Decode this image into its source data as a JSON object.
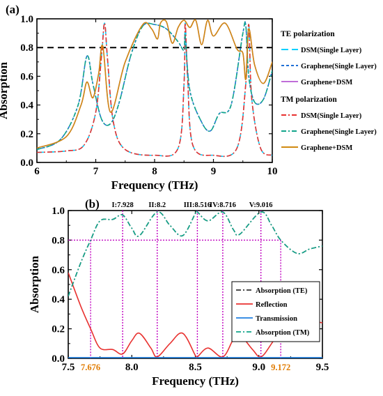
{
  "chart_data": [
    {
      "type": "line",
      "panel_label": "(a)",
      "xlabel": "Frequency (THz)",
      "ylabel": "Absorption",
      "xlim": [
        6,
        10
      ],
      "ylim": [
        0,
        1.0
      ],
      "x_ticks": [
        "6",
        "7",
        "8",
        "9",
        "10"
      ],
      "y_ticks": [
        "0.0",
        "0.2",
        "0.4",
        "0.6",
        "0.8",
        "1.0"
      ],
      "reference_line": {
        "y": 0.8,
        "style": "dashed",
        "color": "#000000"
      },
      "legend_groups": [
        {
          "title": "TE polarization",
          "entries": [
            {
              "label": "DSM(Single Layer)",
              "color": "#00d0ff",
              "dash": "10,5"
            },
            {
              "label": "Graphene(Single Layer)",
              "color": "#1f6fd6",
              "dash": "4,3"
            },
            {
              "label": "Graphene+DSM",
              "color": "#c06dd8",
              "dash": ""
            }
          ]
        },
        {
          "title": "TM polarization",
          "entries": [
            {
              "label": "DSM(Single Layer)",
              "color": "#e8312f",
              "dash": "7,3,2,3"
            },
            {
              "label": "Graphene(Single Layer)",
              "color": "#11a58b",
              "dash": "7,3,2,3"
            },
            {
              "label": "Graphene+DSM",
              "color": "#d08a10",
              "dash": ""
            }
          ]
        }
      ],
      "series": [
        {
          "group": "TE polarization",
          "name": "DSM(Single Layer)",
          "color": "#00d0ff",
          "dash": "10,5",
          "x": [
            6.0,
            6.5,
            6.8,
            7.0,
            7.1,
            7.15,
            7.2,
            7.3,
            7.5,
            8.0,
            8.4,
            8.5,
            8.52,
            8.56,
            8.65,
            9.0,
            9.4,
            9.55,
            9.6,
            9.65,
            9.8,
            10.0
          ],
          "y": [
            0.07,
            0.08,
            0.12,
            0.35,
            0.75,
            0.97,
            0.72,
            0.28,
            0.09,
            0.05,
            0.1,
            0.55,
            0.97,
            0.6,
            0.12,
            0.05,
            0.1,
            0.55,
            0.96,
            0.45,
            0.1,
            0.05
          ]
        },
        {
          "group": "TE polarization",
          "name": "Graphene(Single Layer)",
          "color": "#1f6fd6",
          "dash": "4,3",
          "x": [
            6.0,
            6.4,
            6.7,
            6.85,
            6.95,
            7.1,
            7.25,
            7.4,
            7.6,
            7.8,
            8.0,
            8.2,
            8.4,
            8.5,
            8.52,
            8.6,
            8.8,
            8.95,
            9.1,
            9.3,
            9.5,
            9.55,
            9.6,
            9.7,
            9.85,
            10.0
          ],
          "y": [
            0.09,
            0.16,
            0.4,
            0.74,
            0.55,
            0.3,
            0.27,
            0.42,
            0.75,
            0.95,
            0.96,
            0.93,
            0.84,
            0.78,
            0.88,
            0.5,
            0.28,
            0.22,
            0.34,
            0.4,
            0.9,
            0.95,
            0.6,
            0.42,
            0.44,
            0.64
          ]
        },
        {
          "group": "TE polarization",
          "name": "Graphene+DSM",
          "color": "#c06dd8",
          "dash": "",
          "x": [
            6.0,
            6.5,
            6.75,
            6.85,
            6.95,
            7.05,
            7.12,
            7.25,
            7.5,
            7.8,
            7.95,
            8.05,
            8.1,
            8.2,
            8.3,
            8.4,
            8.5,
            8.6,
            8.7,
            8.8,
            8.9,
            9.0,
            9.2,
            9.4,
            9.5,
            9.55,
            9.6,
            9.7,
            9.85,
            10.0
          ],
          "y": [
            0.1,
            0.18,
            0.4,
            0.56,
            0.45,
            0.62,
            0.81,
            0.35,
            0.7,
            0.96,
            0.93,
            0.86,
            0.97,
            0.98,
            0.83,
            0.94,
            0.99,
            0.94,
            0.99,
            0.82,
            0.99,
            0.88,
            0.97,
            0.79,
            0.76,
            0.58,
            0.93,
            0.68,
            0.55,
            0.7
          ]
        },
        {
          "group": "TM polarization",
          "name": "DSM(Single Layer)",
          "color": "#e8312f",
          "dash": "7,3,2,3",
          "x": [
            6.0,
            6.5,
            6.8,
            7.0,
            7.1,
            7.15,
            7.2,
            7.3,
            7.5,
            8.0,
            8.4,
            8.5,
            8.52,
            8.56,
            8.65,
            9.0,
            9.4,
            9.55,
            9.6,
            9.65,
            9.8,
            10.0
          ],
          "y": [
            0.07,
            0.08,
            0.12,
            0.35,
            0.75,
            0.97,
            0.72,
            0.28,
            0.09,
            0.05,
            0.1,
            0.55,
            0.97,
            0.6,
            0.12,
            0.05,
            0.1,
            0.55,
            0.96,
            0.45,
            0.1,
            0.05
          ]
        },
        {
          "group": "TM polarization",
          "name": "Graphene(Single Layer)",
          "color": "#11a58b",
          "dash": "7,3,2,3",
          "x": [
            6.0,
            6.4,
            6.7,
            6.85,
            6.95,
            7.1,
            7.25,
            7.4,
            7.6,
            7.8,
            8.0,
            8.2,
            8.4,
            8.5,
            8.52,
            8.6,
            8.8,
            8.95,
            9.1,
            9.3,
            9.5,
            9.55,
            9.6,
            9.7,
            9.85,
            10.0
          ],
          "y": [
            0.09,
            0.16,
            0.4,
            0.74,
            0.55,
            0.3,
            0.27,
            0.42,
            0.75,
            0.95,
            0.96,
            0.93,
            0.84,
            0.78,
            0.88,
            0.5,
            0.28,
            0.22,
            0.34,
            0.4,
            0.9,
            0.95,
            0.6,
            0.42,
            0.44,
            0.64
          ]
        },
        {
          "group": "TM polarization",
          "name": "Graphene+DSM",
          "color": "#d08a10",
          "dash": "",
          "x": [
            6.0,
            6.5,
            6.75,
            6.85,
            6.95,
            7.05,
            7.12,
            7.25,
            7.5,
            7.8,
            7.95,
            8.05,
            8.1,
            8.2,
            8.3,
            8.4,
            8.5,
            8.6,
            8.7,
            8.8,
            8.9,
            9.0,
            9.2,
            9.4,
            9.5,
            9.55,
            9.6,
            9.7,
            9.85,
            10.0
          ],
          "y": [
            0.1,
            0.18,
            0.4,
            0.56,
            0.45,
            0.62,
            0.81,
            0.35,
            0.7,
            0.96,
            0.93,
            0.86,
            0.97,
            0.98,
            0.83,
            0.94,
            0.99,
            0.94,
            0.99,
            0.82,
            0.99,
            0.88,
            0.97,
            0.79,
            0.76,
            0.58,
            0.93,
            0.68,
            0.55,
            0.7
          ]
        }
      ]
    },
    {
      "type": "line",
      "panel_label": "(b)",
      "xlabel": "Frequency (THz)",
      "ylabel": "Absorption",
      "xlim": [
        7.5,
        9.5
      ],
      "ylim": [
        0,
        1.0
      ],
      "x_ticks": [
        "7.5",
        "8.0",
        "8.5",
        "9.0",
        "9.5"
      ],
      "y_ticks": [
        "0.0",
        "0.2",
        "0.4",
        "0.6",
        "0.8",
        "1.0"
      ],
      "reference_line": {
        "y": 0.8,
        "style": "dotted",
        "color": "#c000c0"
      },
      "peak_markers": [
        {
          "x": 7.928,
          "label": "I:7.928"
        },
        {
          "x": 8.2,
          "label": "II:8.2"
        },
        {
          "x": 8.516,
          "label": "III:8.516"
        },
        {
          "x": 8.716,
          "label": "IV:8.716"
        },
        {
          "x": 9.016,
          "label": "V:9.016"
        }
      ],
      "bandwidth_markers": [
        {
          "x": 7.676,
          "label": "7.676"
        },
        {
          "x": 9.172,
          "label": "9.172"
        }
      ],
      "legend": [
        {
          "label": "Absorption (TE)",
          "color": "#333333",
          "dash": "7,3,2,3"
        },
        {
          "label": "Reflection",
          "color": "#e8312f",
          "dash": ""
        },
        {
          "label": "Transmission",
          "color": "#1f7fe0",
          "dash": ""
        },
        {
          "label": "Absorption (TM)",
          "color": "#11a58b",
          "dash": "7,3,2,3"
        }
      ],
      "series": [
        {
          "name": "Absorption (TE)",
          "color": "#333333",
          "dash": "7,3,2,3",
          "x": [
            7.5,
            7.6,
            7.676,
            7.75,
            7.85,
            7.928,
            8.0,
            8.06,
            8.2,
            8.3,
            8.4,
            8.5,
            8.516,
            8.6,
            8.716,
            8.8,
            8.85,
            9.016,
            9.1,
            9.172,
            9.3,
            9.4,
            9.5
          ],
          "y": [
            0.42,
            0.65,
            0.8,
            0.93,
            0.94,
            0.97,
            0.88,
            0.83,
            0.99,
            0.9,
            0.83,
            0.98,
            0.99,
            0.93,
            0.99,
            0.87,
            0.84,
            0.99,
            0.9,
            0.8,
            0.71,
            0.74,
            0.76
          ]
        },
        {
          "name": "Reflection",
          "color": "#e8312f",
          "dash": "",
          "x": [
            7.5,
            7.6,
            7.676,
            7.75,
            7.85,
            7.928,
            8.0,
            8.06,
            8.15,
            8.2,
            8.3,
            8.4,
            8.5,
            8.516,
            8.6,
            8.716,
            8.8,
            8.85,
            8.95,
            9.016,
            9.1,
            9.172,
            9.3,
            9.4,
            9.5
          ],
          "y": [
            0.58,
            0.35,
            0.2,
            0.07,
            0.06,
            0.03,
            0.12,
            0.17,
            0.07,
            0.01,
            0.1,
            0.17,
            0.02,
            0.01,
            0.07,
            0.01,
            0.13,
            0.16,
            0.06,
            0.01,
            0.1,
            0.2,
            0.29,
            0.26,
            0.24
          ]
        },
        {
          "name": "Transmission",
          "color": "#1f7fe0",
          "dash": "",
          "x": [
            7.5,
            9.5
          ],
          "y": [
            0.005,
            0.005
          ]
        },
        {
          "name": "Absorption (TM)",
          "color": "#11a58b",
          "dash": "7,3,2,3",
          "x": [
            7.5,
            7.6,
            7.676,
            7.75,
            7.85,
            7.928,
            8.0,
            8.06,
            8.2,
            8.3,
            8.4,
            8.5,
            8.516,
            8.6,
            8.716,
            8.8,
            8.85,
            9.016,
            9.1,
            9.172,
            9.3,
            9.4,
            9.5
          ],
          "y": [
            0.42,
            0.65,
            0.8,
            0.93,
            0.94,
            0.97,
            0.88,
            0.83,
            0.99,
            0.9,
            0.83,
            0.98,
            0.99,
            0.93,
            0.99,
            0.87,
            0.84,
            0.99,
            0.9,
            0.8,
            0.71,
            0.74,
            0.76
          ]
        }
      ]
    }
  ]
}
